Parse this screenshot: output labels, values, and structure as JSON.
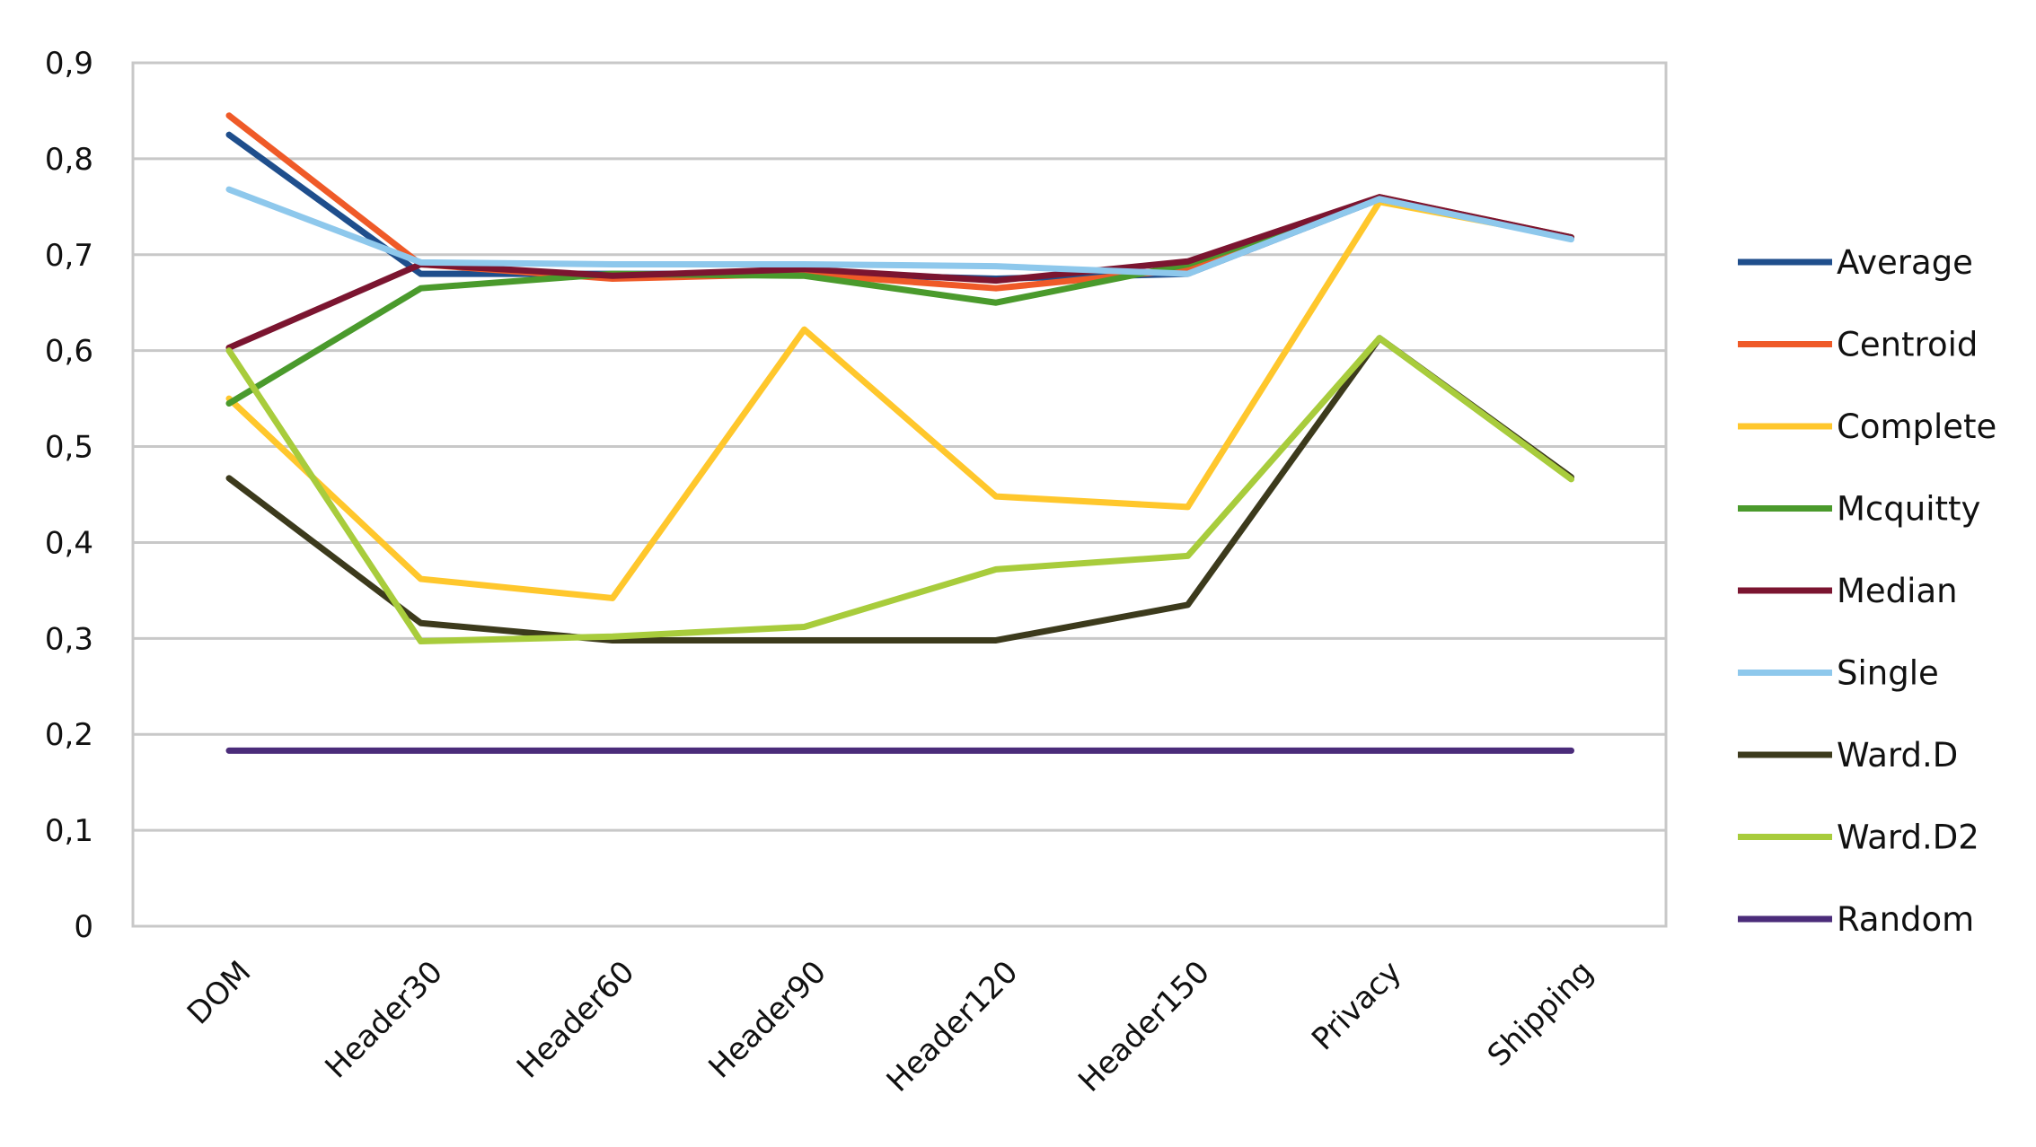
{
  "chart_data": {
    "type": "line",
    "categories": [
      "DOM",
      "Header30",
      "Header60",
      "Header90",
      "Header120",
      "Header150",
      "Privacy",
      "Shipping"
    ],
    "yticks": [
      "0",
      "0,1",
      "0,2",
      "0,3",
      "0,4",
      "0,5",
      "0,6",
      "0,7",
      "0,8",
      "0,9"
    ],
    "ylim": [
      0,
      0.9
    ],
    "grid": true,
    "legend_position": "right",
    "series": [
      {
        "name": "Average",
        "color": "#1f4e8c",
        "values": [
          0.825,
          0.68,
          0.68,
          0.68,
          0.675,
          0.68,
          0.758,
          0.718
        ]
      },
      {
        "name": "Centroid",
        "color": "#ef5a28",
        "values": [
          0.845,
          0.69,
          0.675,
          0.68,
          0.665,
          0.685,
          0.76,
          0.718
        ]
      },
      {
        "name": "Complete",
        "color": "#ffc72c",
        "values": [
          0.55,
          0.362,
          0.342,
          0.622,
          0.448,
          0.437,
          0.755,
          0.718
        ]
      },
      {
        "name": "Mcquitty",
        "color": "#4a9a2c",
        "values": [
          0.545,
          0.665,
          0.68,
          0.678,
          0.65,
          0.69,
          0.758,
          0.718
        ]
      },
      {
        "name": "Median",
        "color": "#7b1530",
        "values": [
          0.603,
          0.69,
          0.678,
          0.685,
          0.673,
          0.693,
          0.76,
          0.718
        ]
      },
      {
        "name": "Single",
        "color": "#8ec8ec",
        "values": [
          0.768,
          0.692,
          0.69,
          0.69,
          0.688,
          0.68,
          0.758,
          0.716
        ]
      },
      {
        "name": "Ward.D",
        "color": "#3c3a1c",
        "values": [
          0.467,
          0.316,
          0.298,
          0.298,
          0.298,
          0.335,
          0.613,
          0.468
        ]
      },
      {
        "name": "Ward.D2",
        "color": "#a8cc3c",
        "values": [
          0.6,
          0.297,
          0.302,
          0.312,
          0.372,
          0.386,
          0.613,
          0.466
        ]
      },
      {
        "name": "Random",
        "color": "#4b2c7a",
        "values": [
          0.183,
          0.183,
          0.183,
          0.183,
          0.183,
          0.183,
          0.183,
          0.183
        ]
      }
    ]
  }
}
